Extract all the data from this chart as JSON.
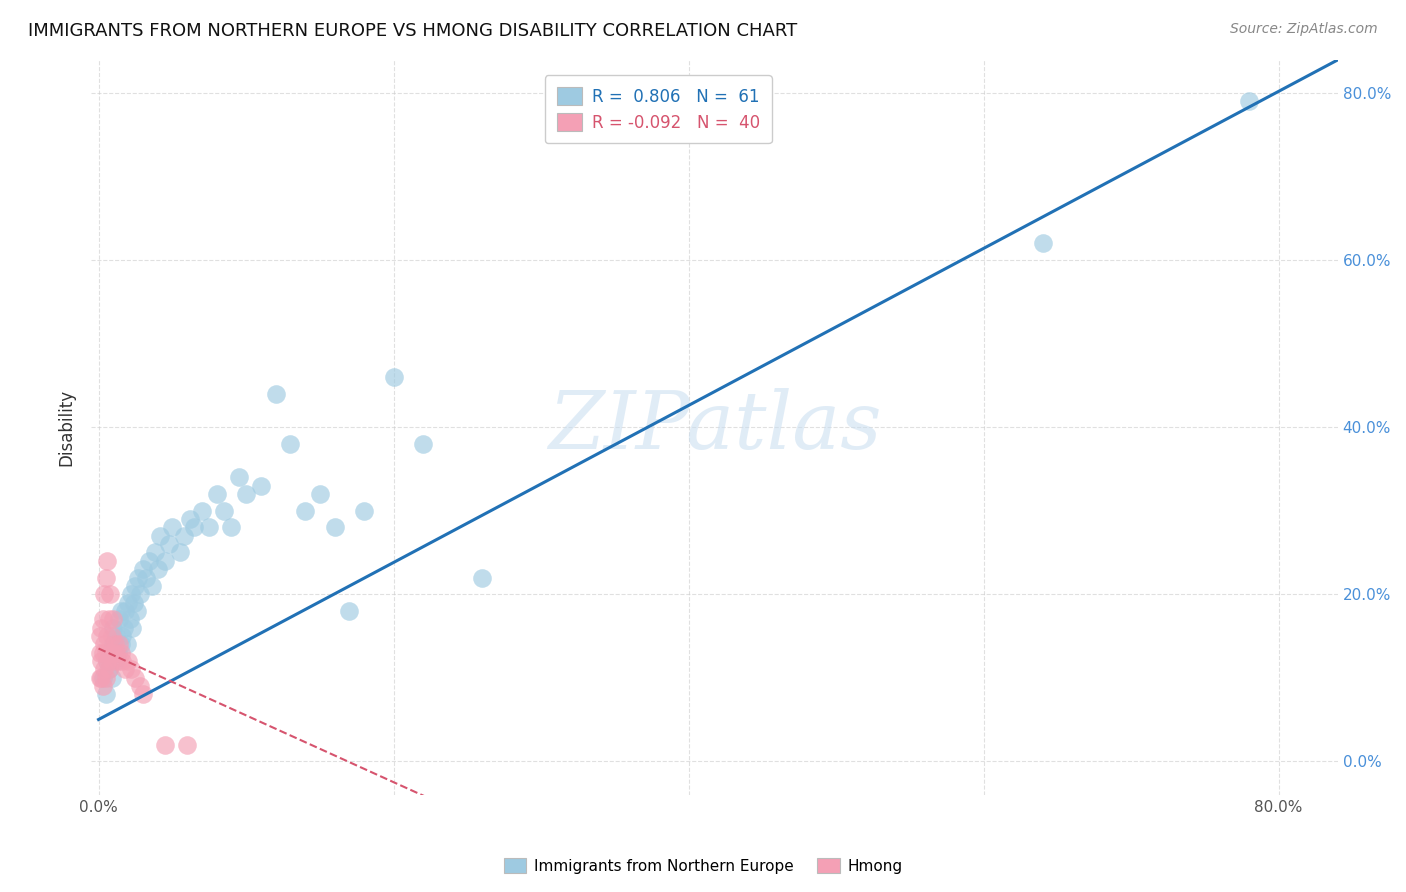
{
  "title": "IMMIGRANTS FROM NORTHERN EUROPE VS HMONG DISABILITY CORRELATION CHART",
  "source": "Source: ZipAtlas.com",
  "ylabel": "Disability",
  "xlim": [
    -0.005,
    0.84
  ],
  "ylim": [
    -0.04,
    0.84
  ],
  "blue_R": 0.806,
  "blue_N": 61,
  "pink_R": -0.092,
  "pink_N": 40,
  "legend_labels": [
    "Immigrants from Northern Europe",
    "Hmong"
  ],
  "blue_color": "#9ecae1",
  "pink_color": "#f4a0b5",
  "blue_line_color": "#2171b5",
  "pink_line_color": "#d6546e",
  "watermark": "ZIPatlas",
  "background_color": "#ffffff",
  "grid_color": "#cccccc",
  "blue_scatter_x": [
    0.003,
    0.005,
    0.006,
    0.007,
    0.008,
    0.009,
    0.01,
    0.01,
    0.011,
    0.012,
    0.013,
    0.014,
    0.015,
    0.015,
    0.016,
    0.017,
    0.018,
    0.019,
    0.02,
    0.021,
    0.022,
    0.023,
    0.024,
    0.025,
    0.026,
    0.027,
    0.028,
    0.03,
    0.032,
    0.034,
    0.036,
    0.038,
    0.04,
    0.042,
    0.045,
    0.048,
    0.05,
    0.055,
    0.058,
    0.062,
    0.065,
    0.07,
    0.075,
    0.08,
    0.085,
    0.09,
    0.095,
    0.1,
    0.11,
    0.12,
    0.13,
    0.14,
    0.15,
    0.16,
    0.17,
    0.18,
    0.2,
    0.22,
    0.26,
    0.64,
    0.78
  ],
  "blue_scatter_y": [
    0.1,
    0.08,
    0.12,
    0.11,
    0.13,
    0.1,
    0.14,
    0.16,
    0.12,
    0.15,
    0.13,
    0.17,
    0.14,
    0.18,
    0.15,
    0.16,
    0.18,
    0.14,
    0.19,
    0.17,
    0.2,
    0.16,
    0.19,
    0.21,
    0.18,
    0.22,
    0.2,
    0.23,
    0.22,
    0.24,
    0.21,
    0.25,
    0.23,
    0.27,
    0.24,
    0.26,
    0.28,
    0.25,
    0.27,
    0.29,
    0.28,
    0.3,
    0.28,
    0.32,
    0.3,
    0.28,
    0.34,
    0.32,
    0.33,
    0.44,
    0.38,
    0.3,
    0.32,
    0.28,
    0.18,
    0.3,
    0.46,
    0.38,
    0.22,
    0.62,
    0.79
  ],
  "pink_scatter_x": [
    0.001,
    0.001,
    0.001,
    0.002,
    0.002,
    0.002,
    0.003,
    0.003,
    0.003,
    0.004,
    0.004,
    0.004,
    0.005,
    0.005,
    0.005,
    0.006,
    0.006,
    0.006,
    0.007,
    0.007,
    0.008,
    0.008,
    0.009,
    0.009,
    0.01,
    0.01,
    0.011,
    0.012,
    0.013,
    0.014,
    0.015,
    0.016,
    0.018,
    0.02,
    0.022,
    0.025,
    0.028,
    0.03,
    0.045,
    0.06
  ],
  "pink_scatter_y": [
    0.1,
    0.13,
    0.15,
    0.1,
    0.12,
    0.16,
    0.09,
    0.13,
    0.17,
    0.11,
    0.14,
    0.2,
    0.1,
    0.13,
    0.22,
    0.12,
    0.15,
    0.24,
    0.11,
    0.17,
    0.13,
    0.2,
    0.12,
    0.15,
    0.13,
    0.17,
    0.14,
    0.13,
    0.12,
    0.14,
    0.13,
    0.12,
    0.11,
    0.12,
    0.11,
    0.1,
    0.09,
    0.08,
    0.02,
    0.02
  ],
  "x_tick_positions": [
    0.0,
    0.2,
    0.4,
    0.6,
    0.8
  ],
  "x_tick_labels": [
    "0.0%",
    "",
    "",
    "",
    "80.0%"
  ],
  "y_tick_positions": [
    0.0,
    0.2,
    0.4,
    0.6,
    0.8
  ],
  "y_right_labels": [
    "0.0%",
    "20.0%",
    "40.0%",
    "60.0%",
    "80.0%"
  ]
}
